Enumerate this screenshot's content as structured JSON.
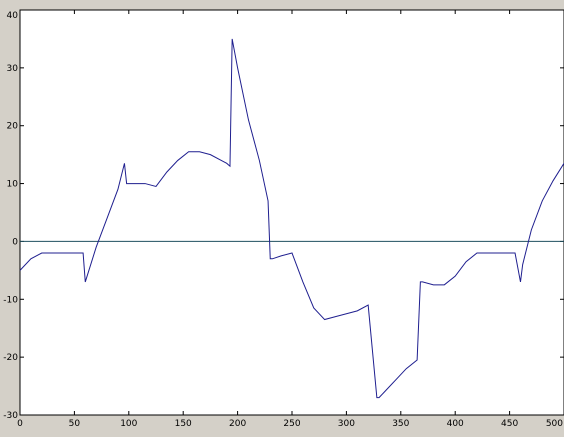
{
  "chart_data": {
    "type": "line",
    "title": "",
    "xlabel": "",
    "ylabel": "",
    "xlim": [
      0,
      500
    ],
    "ylim": [
      -30,
      40
    ],
    "grid": false,
    "x_ticks": [
      0,
      50,
      100,
      150,
      200,
      250,
      300,
      350,
      400,
      450,
      500
    ],
    "y_ticks": [
      -30,
      -20,
      -10,
      0,
      10,
      20,
      30,
      40
    ],
    "x_tick_labels": [
      "0",
      "50",
      "100",
      "150",
      "200",
      "250",
      "300",
      "350",
      "400",
      "450",
      "500"
    ],
    "y_tick_labels": [
      "-30",
      "-20",
      "-10",
      "0",
      "10",
      "20",
      "30",
      "40"
    ],
    "series": [
      {
        "x": [
          0,
          10,
          20,
          30,
          40,
          50,
          58,
          60,
          70,
          80,
          90,
          96,
          98,
          105,
          115,
          125,
          135,
          145,
          155,
          165,
          175,
          185,
          190,
          193,
          195,
          200,
          210,
          220,
          228,
          230,
          232,
          240,
          250,
          260,
          270,
          280,
          290,
          300,
          310,
          320,
          328,
          330,
          335,
          345,
          355,
          365,
          368,
          370,
          380,
          390,
          400,
          410,
          420,
          430,
          440,
          450,
          455,
          460,
          462,
          470,
          480,
          490,
          500
        ],
        "y": [
          -5,
          -3,
          -2,
          -2,
          -2,
          -2,
          -2,
          -7,
          -1,
          4,
          9,
          13.5,
          10,
          10,
          10,
          9.5,
          12,
          14,
          15.5,
          15.5,
          15,
          14,
          13.5,
          13,
          35,
          30,
          21,
          14,
          7,
          -3,
          -3,
          -2.5,
          -2,
          -7,
          -11.5,
          -13.5,
          -13,
          -12.5,
          -12,
          -11,
          -27,
          -27,
          -26,
          -24,
          -22,
          -20.5,
          -7,
          -7,
          -7.5,
          -7.5,
          -6,
          -3.5,
          -2,
          -2,
          -2,
          -2,
          -2,
          -7,
          -4,
          2,
          7,
          10.5,
          13.5
        ],
        "color": "#1f1f8f"
      }
    ],
    "reference_lines": [
      {
        "y": 0,
        "color": "#1f4f5f"
      }
    ]
  }
}
